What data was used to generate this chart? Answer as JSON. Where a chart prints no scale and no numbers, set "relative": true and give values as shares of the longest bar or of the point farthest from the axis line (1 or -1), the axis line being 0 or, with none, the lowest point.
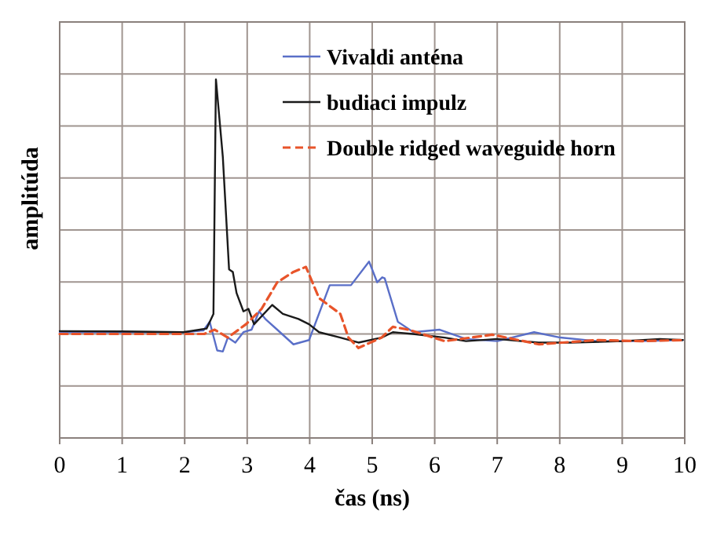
{
  "chart_data": {
    "type": "line",
    "relative": true,
    "xlabel": "čas (ns)",
    "ylabel": "amplitúda",
    "xlim": [
      0,
      10
    ],
    "xticks": [
      0,
      1,
      2,
      3,
      4,
      5,
      6,
      7,
      8,
      9,
      10
    ],
    "grid": true,
    "legend": "top right",
    "tick_labels": "x",
    "series": [
      {
        "name": "Vivaldi anténa",
        "color": "#5a6fc8",
        "line_style": "solid",
        "x": [
          0,
          1,
          2,
          2.3,
          2.4,
          2.52,
          2.61,
          2.69,
          2.81,
          2.94,
          3.07,
          3.19,
          3.3,
          3.48,
          3.74,
          3.99,
          4.32,
          4.66,
          4.95,
          5.08,
          5.16,
          5.2,
          5.41,
          5.66,
          6.08,
          6.5,
          7.0,
          7.59,
          8.01,
          8.59,
          9.3,
          9.97
        ],
        "values": [
          0.295,
          0.295,
          0.295,
          0.3,
          0.324,
          0.244,
          0.241,
          0.28,
          0.266,
          0.295,
          0.302,
          0.353,
          0.33,
          0.302,
          0.261,
          0.273,
          0.426,
          0.426,
          0.492,
          0.434,
          0.448,
          0.445,
          0.324,
          0.295,
          0.302,
          0.276,
          0.27,
          0.295,
          0.28,
          0.27,
          0.27,
          0.273
        ]
      },
      {
        "name": "budiaci impulz",
        "color": "#1a1a1a",
        "line_style": "solid",
        "x": [
          0,
          1,
          1.98,
          2.35,
          2.46,
          2.5,
          2.61,
          2.71,
          2.77,
          2.83,
          2.94,
          3.02,
          3.11,
          3.4,
          3.57,
          3.82,
          3.99,
          4.15,
          4.49,
          4.78,
          5.15,
          5.33,
          5.65,
          6.16,
          6.5,
          7.0,
          7.66,
          8.17,
          9.01,
          9.6,
          9.97
        ],
        "values": [
          0.298,
          0.297,
          0.295,
          0.305,
          0.346,
          1,
          0.784,
          0.47,
          0.463,
          0.404,
          0.353,
          0.36,
          0.317,
          0.371,
          0.346,
          0.332,
          0.317,
          0.295,
          0.28,
          0.266,
          0.28,
          0.295,
          0.29,
          0.28,
          0.27,
          0.276,
          0.266,
          0.266,
          0.27,
          0.276,
          0.273
        ]
      },
      {
        "name": "Double ridged waveguide horn",
        "color": "#e8542a",
        "line_style": "dashed",
        "x": [
          0,
          1,
          2,
          2.31,
          2.48,
          2.69,
          2.98,
          3.23,
          3.48,
          3.74,
          3.94,
          4.15,
          4.49,
          4.62,
          4.78,
          5.15,
          5.33,
          5.58,
          6.16,
          6.92,
          7.67,
          8.59,
          9.3,
          9.97
        ],
        "values": [
          0.29,
          0.29,
          0.29,
          0.29,
          0.302,
          0.28,
          0.317,
          0.36,
          0.434,
          0.463,
          0.477,
          0.39,
          0.346,
          0.28,
          0.251,
          0.28,
          0.31,
          0.302,
          0.27,
          0.288,
          0.261,
          0.273,
          0.27,
          0.273
        ]
      }
    ]
  }
}
